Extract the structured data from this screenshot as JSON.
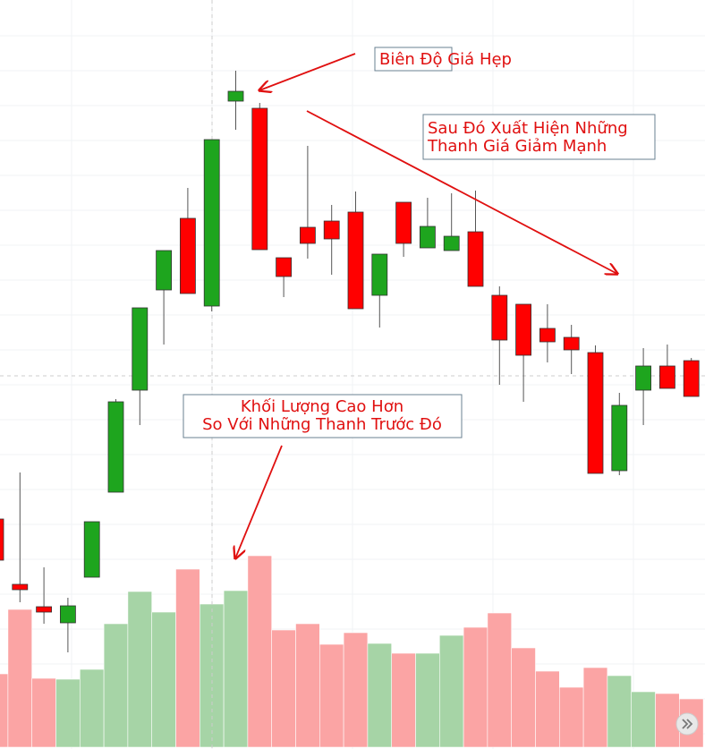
{
  "chart_data": {
    "type": "candlestick",
    "open": [
      257,
      184,
      159,
      141,
      192,
      287,
      401,
      513,
      593,
      495,
      724,
      716,
      549,
      583,
      590,
      600,
      507,
      611,
      560,
      557,
      578,
      507,
      497,
      470,
      460,
      443,
      311,
      401,
      428,
      434
    ],
    "high": [
      257,
      309,
      203,
      169,
      254,
      391,
      493,
      557,
      627,
      681,
      758,
      722,
      549,
      674,
      608,
      623,
      553,
      611,
      616,
      621,
      624,
      517,
      497,
      497,
      474,
      451,
      398,
      448,
      452,
      437
    ],
    "low": [
      211,
      164,
      140,
      108,
      192,
      287,
      362,
      452,
      509,
      489,
      692,
      558,
      505,
      548,
      530,
      492,
      471,
      550,
      560,
      557,
      517,
      407,
      388,
      432,
      419,
      308,
      306,
      362,
      403,
      394
    ],
    "close": [
      211,
      178,
      153,
      160,
      254,
      388,
      493,
      557,
      509,
      681,
      735,
      558,
      528,
      565,
      570,
      492,
      553,
      565,
      584,
      573,
      517,
      457,
      440,
      455,
      446,
      308,
      384,
      428,
      403,
      394
    ],
    "volume": [
      82,
      154,
      77,
      76,
      87,
      138,
      174,
      151,
      199,
      160,
      175,
      214,
      131,
      138,
      115,
      128,
      116,
      105,
      105,
      125,
      134,
      150,
      111,
      85,
      67,
      89,
      80,
      62,
      60,
      54
    ],
    "ylim": [
      0,
      837
    ],
    "volume_ylim": [
      0,
      835
    ],
    "up_color": "#1ea51e",
    "down_color": "#ff0000",
    "up_volume_color": "#a6d4a6",
    "down_volume_color": "#fba4a4",
    "grid": true,
    "annotations": [
      {
        "lines": [
          "Biên Độ Giá Hẹp"
        ]
      },
      {
        "lines": [
          "Sau Đó Xuất Hiện Những",
          "Thanh Giá Giảm Mạnh"
        ]
      },
      {
        "lines": [
          "Khối Lượng Cao Hơn",
          "So Với Những Thanh Trước Đó"
        ]
      }
    ]
  }
}
